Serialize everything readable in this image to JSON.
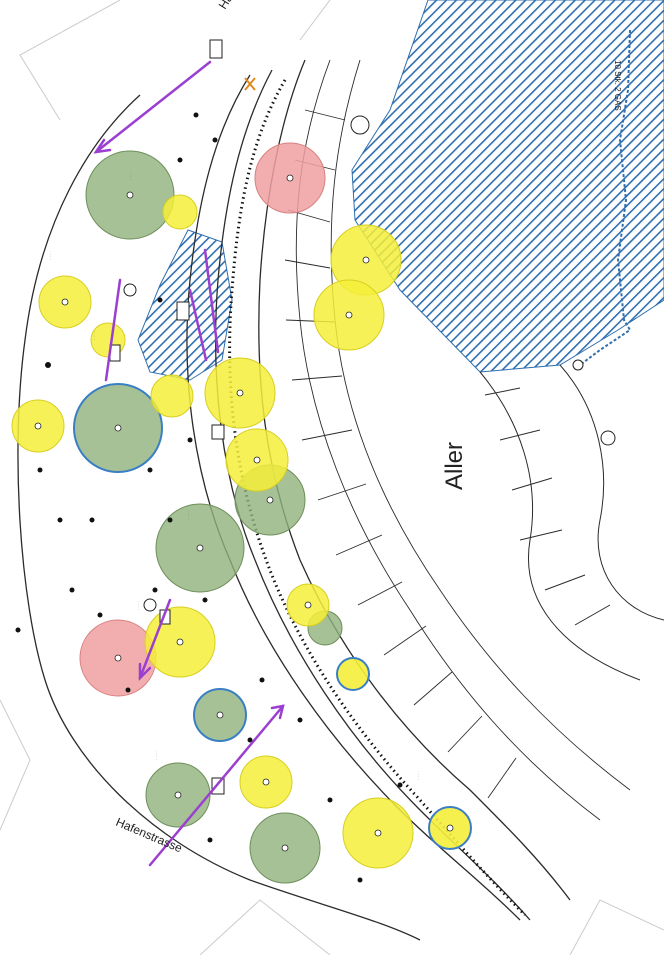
{
  "map": {
    "river_label": "Aller",
    "street_labels": [
      "Hafenstrasse",
      "Hafenstrasse"
    ],
    "cable_label": "10 Stk. 2 GAS",
    "colors": {
      "background": "#ffffff",
      "lines": "#2b2b2b",
      "light_lines": "#9aa0a6",
      "water_hatch": "#2f6fb0",
      "tree_green": "#8fb27a",
      "tree_yellow": "#f4ee3a",
      "tree_red": "#f0a0a0",
      "tree_blue_outline": "#3a7fc4",
      "arrow": "#9b3fd1"
    },
    "legend_icons": [
      "tree-marker-icon",
      "lamp-post-icon",
      "arrow-icon"
    ]
  }
}
